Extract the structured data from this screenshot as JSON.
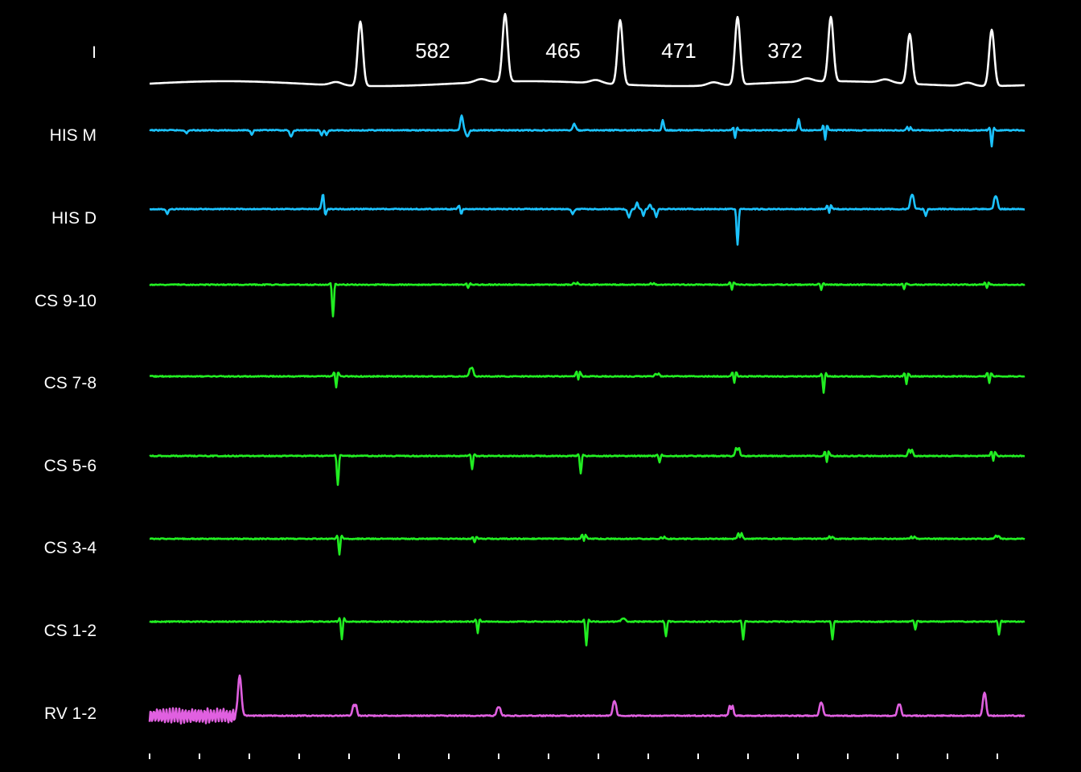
{
  "leads": [
    {
      "key": "I",
      "label": "I",
      "color": "#ffffff"
    },
    {
      "key": "HIS_M",
      "label": "HIS M",
      "color": "#1cc3ff"
    },
    {
      "key": "HIS_D",
      "label": "HIS D",
      "color": "#1cc3ff"
    },
    {
      "key": "CS_9_10",
      "label": "CS 9-10",
      "color": "#22ee22"
    },
    {
      "key": "CS_7_8",
      "label": "CS 7-8",
      "color": "#22ee22"
    },
    {
      "key": "CS_5_6",
      "label": "CS 5-6",
      "color": "#22ee22"
    },
    {
      "key": "CS_3_4",
      "label": "CS 3-4",
      "color": "#22ee22"
    },
    {
      "key": "CS_1_2",
      "label": "CS 1-2",
      "color": "#22ee22"
    },
    {
      "key": "RV_1_2",
      "label": "RV 1-2",
      "color": "#e060e0"
    }
  ],
  "intervals": [
    {
      "label": "582"
    },
    {
      "label": "465"
    },
    {
      "label": "471"
    },
    {
      "label": "372"
    }
  ]
}
